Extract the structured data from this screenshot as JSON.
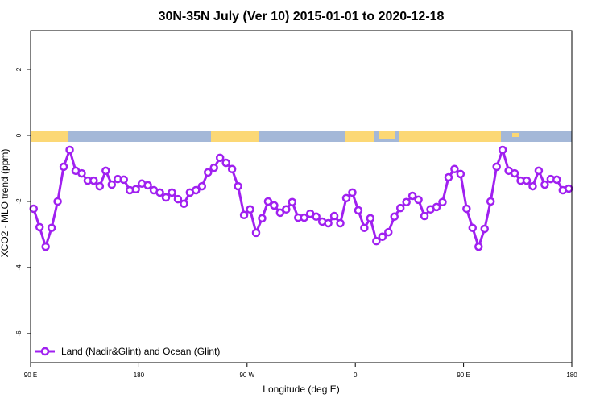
{
  "chart_data": {
    "type": "line",
    "title": "30N-35N July (Ver 10)   2015-01-01 to 2020-12-18",
    "x_label": "Longitude (deg E)",
    "y_label": "XCO2 - MLO trend (ppm)",
    "x": [
      92.5,
      97.5,
      102.5,
      107.5,
      112.5,
      117.5,
      122.5,
      127.5,
      132.5,
      137.5,
      142.5,
      147.5,
      152.5,
      157.5,
      162.5,
      167.5,
      172.5,
      177.5,
      182.5,
      187.5,
      192.5,
      197.5,
      202.5,
      207.5,
      212.5,
      217.5,
      222.5,
      227.5,
      232.5,
      237.5,
      242.5,
      247.5,
      252.5,
      257.5,
      262.5,
      267.5,
      272.5,
      277.5,
      282.5,
      287.5,
      292.5,
      297.5,
      302.5,
      307.5,
      312.5,
      317.5,
      322.5,
      327.5,
      332.5,
      337.5,
      342.5,
      347.5,
      352.5,
      357.5,
      362.5,
      367.5,
      372.5,
      377.5,
      382.5,
      387.5,
      392.5,
      397.5,
      402.5,
      407.5,
      412.5,
      417.5,
      422.5,
      427.5,
      432.5,
      437.5,
      442.5,
      447.5,
      452.5,
      457.5,
      462.5,
      467.5,
      472.5,
      477.5,
      482.5,
      487.5,
      492.5,
      497.5,
      502.5,
      507.5,
      512.5,
      517.5,
      522.5,
      527.5,
      532.5,
      537.5
    ],
    "series": [
      {
        "name": "Land (Nadir&Glint) and Ocean (Glint)",
        "color": "#a020f0",
        "values": [
          -2.22,
          -2.78,
          -3.37,
          -2.8,
          -2.0,
          -0.95,
          -0.44,
          -1.07,
          -1.15,
          -1.37,
          -1.37,
          -1.54,
          -1.07,
          -1.49,
          -1.32,
          -1.34,
          -1.66,
          -1.63,
          -1.46,
          -1.51,
          -1.66,
          -1.73,
          -1.88,
          -1.73,
          -1.93,
          -2.07,
          -1.73,
          -1.66,
          -1.54,
          -1.12,
          -0.98,
          -0.68,
          -0.83,
          -1.02,
          -1.54,
          -2.41,
          -2.24,
          -2.95,
          -2.51,
          -2.0,
          -2.12,
          -2.34,
          -2.24,
          -2.02,
          -2.49,
          -2.49,
          -2.37,
          -2.46,
          -2.61,
          -2.66,
          -2.44,
          -2.66,
          -1.9,
          -1.73,
          -2.27,
          -2.8,
          -2.51,
          -3.2,
          -3.07,
          -2.93,
          -2.46,
          -2.2,
          -2.02,
          -1.83,
          -1.95,
          -2.44,
          -2.24,
          -2.17,
          -2.02,
          -1.27,
          -1.02,
          -1.17,
          -2.22,
          -2.8,
          -3.37,
          -2.83,
          -2.0,
          -0.95,
          -0.44,
          -1.07,
          -1.15,
          -1.37,
          -1.37,
          -1.54,
          -1.07,
          -1.49,
          -1.32,
          -1.34,
          -1.66,
          -1.61
        ]
      }
    ],
    "xlim": [
      90,
      540
    ],
    "xticks": [
      {
        "value": 90,
        "label": "90 E"
      },
      {
        "value": 180,
        "label": "180"
      },
      {
        "value": 270,
        "label": "90 W"
      },
      {
        "value": 360,
        "label": "0"
      },
      {
        "value": 450,
        "label": "90 E"
      },
      {
        "value": 540,
        "label": "180"
      }
    ],
    "ylim": [
      -6.88,
      3.17
    ],
    "yticks": [
      -6,
      -4,
      -2,
      0,
      2
    ],
    "legend": "bottom-left"
  }
}
